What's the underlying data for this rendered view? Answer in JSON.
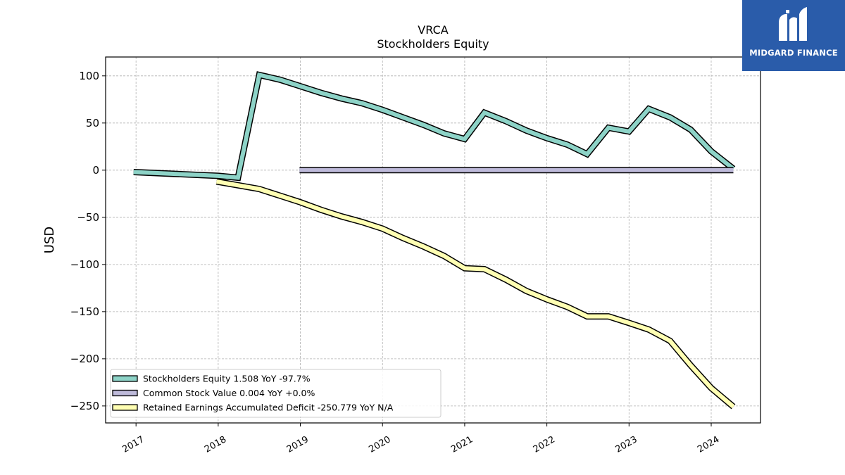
{
  "brand": {
    "name": "MIDGARD FINANCE",
    "logo_icon": "midgard-m-logo-icon",
    "bg_color": "#2a5caa"
  },
  "chart_data": {
    "type": "line",
    "title": "VRCA",
    "subtitle": "Stockholders  Equity",
    "ylabel": "USD",
    "xlabel": "",
    "ylim": [
      -268,
      120
    ],
    "xlim": [
      2016.63,
      2024.6
    ],
    "yticks": [
      100,
      50,
      0,
      -50,
      -100,
      -150,
      -200,
      -250
    ],
    "ytick_labels": [
      "100",
      "50",
      "0",
      "−50",
      "−100",
      "−150",
      "−200",
      "−250"
    ],
    "xticks": [
      2017,
      2018,
      2019,
      2020,
      2021,
      2022,
      2023,
      2024
    ],
    "xtick_labels": [
      "2017",
      "2018",
      "2019",
      "2020",
      "2021",
      "2022",
      "2023",
      "2024"
    ],
    "grid": true,
    "legend_position": "lower-left",
    "series": [
      {
        "name": "Stockholders Equity  1.508 YoY -97.7%",
        "color": "#8dd3c7",
        "x": [
          2016.97,
          2018.0,
          2018.24,
          2018.5,
          2018.75,
          2019.0,
          2019.25,
          2019.5,
          2019.75,
          2020.0,
          2020.25,
          2020.5,
          2020.75,
          2021.0,
          2021.24,
          2021.5,
          2021.75,
          2022.0,
          2022.25,
          2022.49,
          2022.75,
          2023.0,
          2023.24,
          2023.5,
          2023.75,
          2024.0,
          2024.27
        ],
        "y": [
          -2,
          -6,
          -8,
          101,
          96,
          89,
          82,
          76,
          71,
          64,
          56,
          48,
          39,
          33,
          61,
          52,
          42,
          34,
          27,
          17,
          45,
          41,
          65,
          56,
          43,
          20,
          1.508
        ]
      },
      {
        "name": "Common Stock Value  0.004 YoY +0.0%",
        "color": "#bebada",
        "x": [
          2018.99,
          2024.27
        ],
        "y": [
          0.004,
          0.004
        ]
      },
      {
        "name": "Retained Earnings Accumulated Deficit  -250.779 YoY N/A",
        "color": "#ffffb3",
        "x": [
          2017.98,
          2018.5,
          2018.75,
          2019.0,
          2019.25,
          2019.5,
          2019.75,
          2020.0,
          2020.25,
          2020.5,
          2020.75,
          2021.0,
          2021.24,
          2021.5,
          2021.75,
          2022.0,
          2022.25,
          2022.49,
          2022.75,
          2023.0,
          2023.24,
          2023.5,
          2023.75,
          2024.0,
          2024.27
        ],
        "y": [
          -12,
          -20,
          -27,
          -34,
          -42,
          -49,
          -55,
          -62,
          -72,
          -81,
          -91,
          -104,
          -105,
          -116,
          -128,
          -137,
          -145,
          -155,
          -155,
          -162,
          -169,
          -181,
          -207,
          -231,
          -250.779
        ]
      }
    ]
  }
}
